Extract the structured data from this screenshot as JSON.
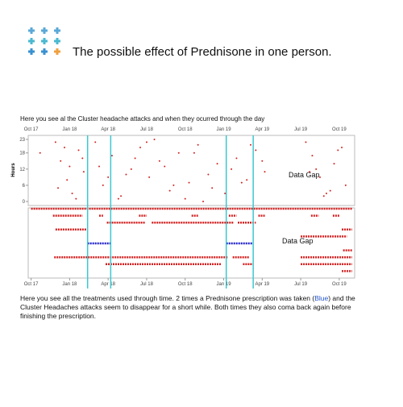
{
  "header": {
    "title": "The possible effect of Prednisone in one person."
  },
  "intro": "Here you see al the Cluster headache attacks and when they ocurred through the day",
  "outro": {
    "before": "Here you see all the treatments used through time. 2 times a Prednisone prescription was taken (",
    "highlight": "Blue",
    "after": ") and the Cluster Headaches attacks seem to disappear for a short while. Both times they also coma back again before finishing the prescription."
  },
  "chart_data": [
    {
      "type": "scatter",
      "y_label": "Hours",
      "color": "#d42020",
      "annotation": "Data Gap",
      "xlim": [
        -0.1,
        25.2
      ],
      "ylim": [
        0,
        23
      ],
      "xticks": [
        {
          "value": 0,
          "label": "Oct 17"
        },
        {
          "value": 3,
          "label": "Jan 18"
        },
        {
          "value": 6,
          "label": "Apr 18"
        },
        {
          "value": 9,
          "label": "Jul 18"
        },
        {
          "value": 12,
          "label": "Oct 18"
        },
        {
          "value": 15,
          "label": "Jan 19"
        },
        {
          "value": 18,
          "label": "Apr 19"
        },
        {
          "value": 21,
          "label": "Jul 19"
        },
        {
          "value": 24,
          "label": "Oct 19"
        }
      ],
      "yticks": [
        0,
        6,
        12,
        18,
        23
      ],
      "markers": [
        4.4,
        6.2,
        15.2,
        17.3
      ],
      "marker_color": "#3cc8d0",
      "x": [
        1.9,
        2.3,
        2.8,
        3.2,
        3.7,
        4.1,
        2.1,
        3.0,
        3.5,
        2.6,
        5.0,
        5.6,
        6.3,
        7.0,
        7.8,
        8.5,
        9.2,
        10.0,
        10.8,
        11.5,
        12.3,
        13.0,
        13.8,
        14.5,
        15.1,
        16.0,
        16.8,
        17.5,
        18.2,
        5.3,
        6.8,
        8.1,
        9.6,
        11.1,
        12.7,
        14.1,
        15.6,
        17.1,
        21.4,
        21.9,
        22.5,
        23.0,
        23.6,
        24.2,
        24.5,
        21.7,
        22.8,
        23.9,
        0.7,
        7.4,
        10.4,
        13.4,
        16.4,
        18.0,
        22.2,
        23.3,
        4.0,
        6.0,
        9.0,
        12.0
      ],
      "values": [
        22,
        15,
        8,
        3,
        19,
        11,
        5,
        13,
        1,
        20,
        22,
        6,
        17,
        2,
        12,
        20,
        9,
        15,
        4,
        18,
        7,
        21,
        10,
        14,
        3,
        16,
        8,
        19,
        11,
        13,
        1,
        16,
        23,
        6,
        18,
        5,
        12,
        21,
        22,
        17,
        9,
        3,
        14,
        20,
        6,
        11,
        2,
        19,
        18,
        10,
        13,
        0,
        7,
        15,
        12,
        4,
        16,
        9,
        22,
        1
      ]
    },
    {
      "type": "timeline",
      "annotation": "Data Gap",
      "series": [
        {
          "color": "#d42020",
          "intervals": [
            [
              0,
              25
            ]
          ]
        },
        {
          "color": "#d42020",
          "intervals": [
            [
              1.7,
              4.0
            ],
            [
              5.3,
              5.6
            ],
            [
              8.4,
              9.0
            ],
            [
              12.5,
              13.0
            ],
            [
              15.4,
              16.0
            ],
            [
              17.7,
              18.2
            ],
            [
              21.8,
              22.4
            ],
            [
              23.5,
              24.0
            ]
          ]
        },
        {
          "color": "#d42020",
          "intervals": [
            [
              5.9,
              8.9
            ],
            [
              9.4,
              15.8
            ],
            [
              16.1,
              17.5
            ]
          ]
        },
        {
          "color": "#d42020",
          "intervals": [
            [
              1.9,
              4.3
            ],
            [
              24.2,
              25.0
            ]
          ]
        },
        {
          "color": "#d42020",
          "intervals": [
            [
              21.0,
              24.6
            ]
          ]
        },
        {
          "color": "#2020cc",
          "intervals": [
            [
              4.4,
              6.2
            ],
            [
              15.2,
              17.3
            ]
          ]
        },
        {
          "color": "#d42020",
          "intervals": [
            [
              24.3,
              25.0
            ]
          ]
        },
        {
          "color": "#d42020",
          "intervals": [
            [
              1.8,
              15.3
            ],
            [
              15.7,
              17.0
            ],
            [
              21.0,
              25.0
            ]
          ]
        },
        {
          "color": "#d42020",
          "intervals": [
            [
              5.8,
              14.8
            ],
            [
              16.5,
              17.3
            ],
            [
              21.0,
              25.0
            ]
          ]
        },
        {
          "color": "#d42020",
          "intervals": [
            [
              24.2,
              25.0
            ]
          ]
        }
      ]
    }
  ]
}
